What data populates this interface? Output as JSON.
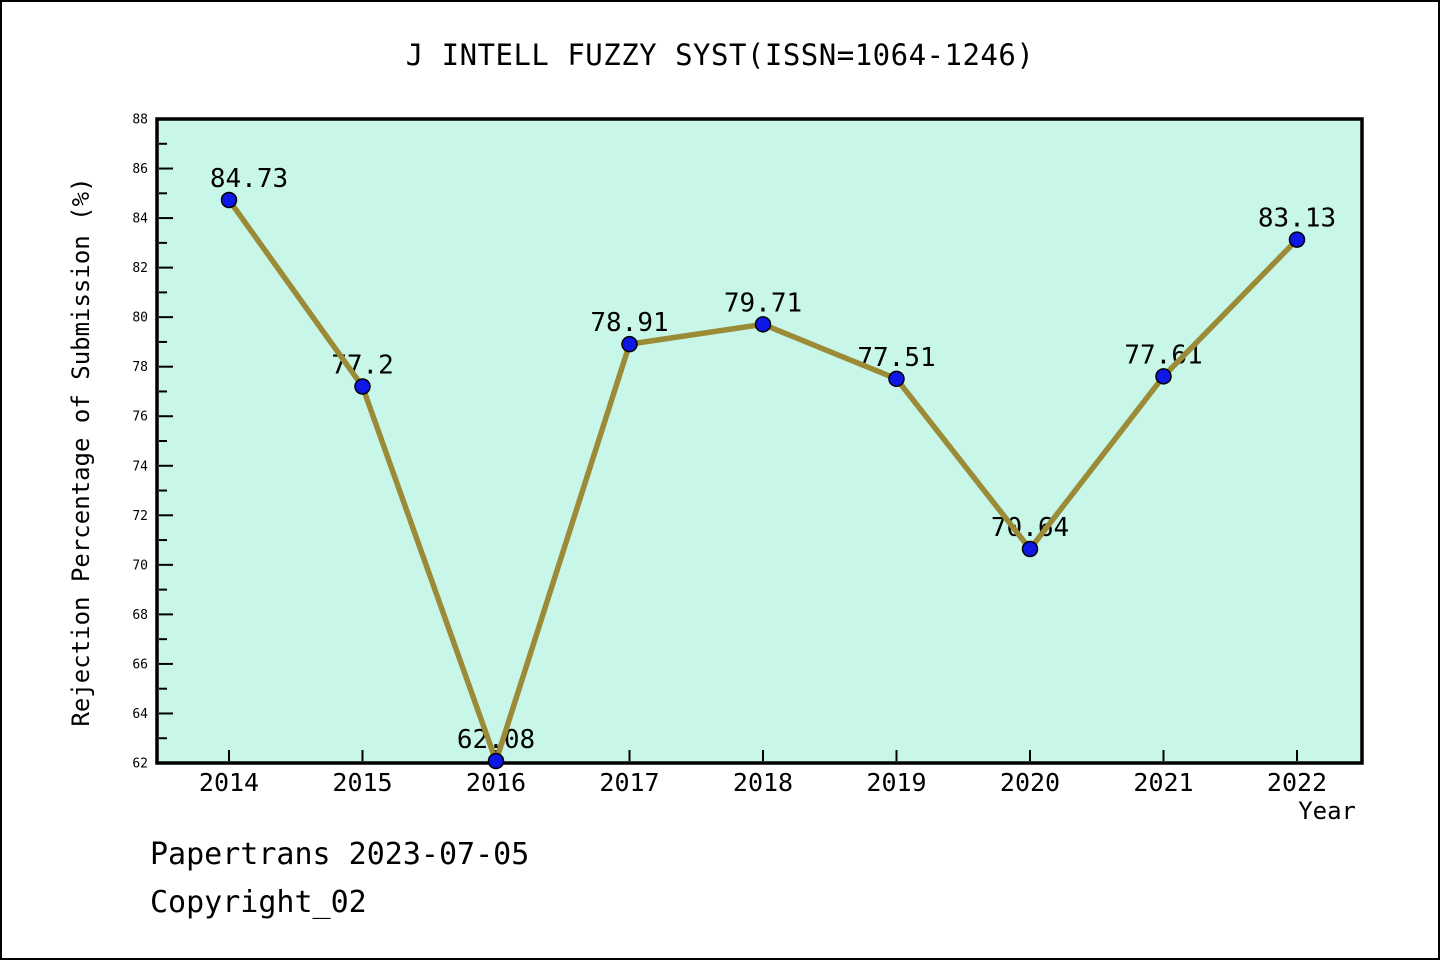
{
  "footer": {
    "credit": "Papertrans 2023-07-05",
    "copyright": "Copyright_02"
  },
  "chart_data": {
    "type": "line",
    "title": "J INTELL FUZZY SYST(ISSN=1064-1246)",
    "x": [
      2014,
      2015,
      2016,
      2017,
      2018,
      2019,
      2020,
      2021,
      2022
    ],
    "values": [
      84.73,
      77.2,
      62.08,
      78.91,
      79.71,
      77.51,
      70.64,
      77.61,
      83.13
    ],
    "point_labels": [
      "84.73",
      "77.2",
      "62.08",
      "78.91",
      "79.71",
      "77.51",
      "70.64",
      "77.61",
      "83.13"
    ],
    "xlabel": "Year",
    "ylabel": "Rejection Percentage of Submission (%)",
    "ylim": [
      62,
      88
    ],
    "y_tick_labels": [
      62,
      64,
      66,
      68,
      70,
      72,
      74,
      76,
      78,
      80,
      82,
      84,
      86,
      88
    ],
    "y_minor_step": 1,
    "grid": false,
    "legend": false,
    "colors": {
      "plot_background": "#c8f7e9",
      "line": "#9b8b36",
      "marker_fill": "#0f17e6",
      "marker_edge": "#000000",
      "axis": "#000000",
      "text": "#000000"
    }
  }
}
